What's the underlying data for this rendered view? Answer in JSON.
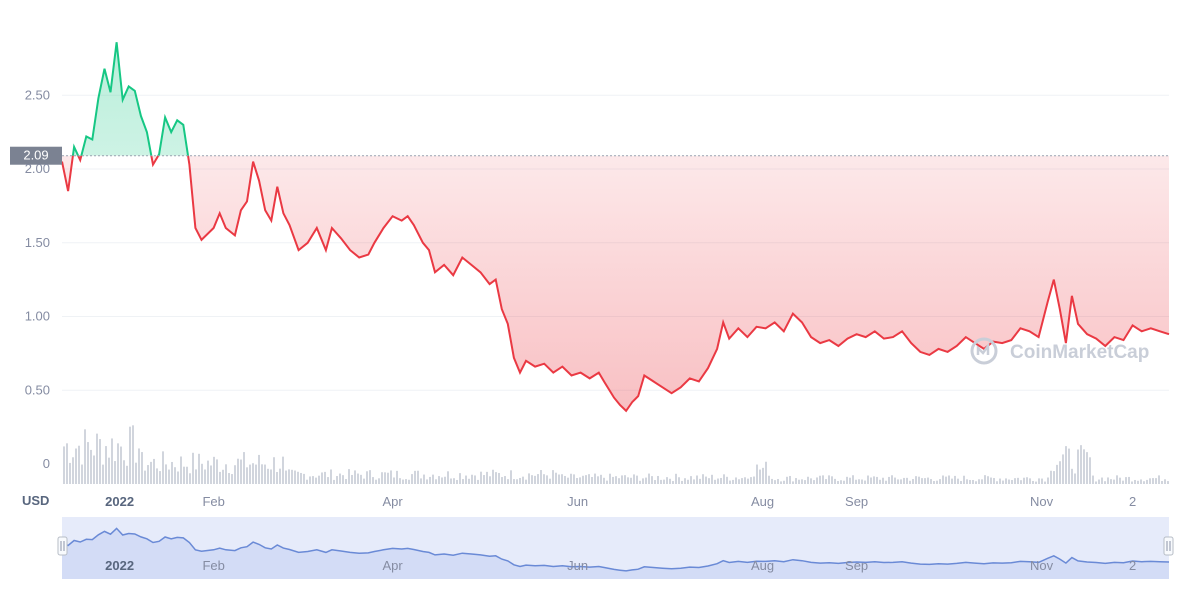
{
  "chart_data": {
    "type": "area",
    "y_axis": {
      "unit_label": "USD",
      "ticks": [
        "0",
        "0.50",
        "1.00",
        "1.50",
        "2.00",
        "2.50"
      ],
      "ylim": [
        0,
        3.0
      ]
    },
    "x_axis": {
      "labels": [
        {
          "text": "2022",
          "date": "2022-01-01",
          "bold": true
        },
        {
          "text": "Feb",
          "date": "2022-02-01",
          "bold": false
        },
        {
          "text": "Apr",
          "date": "2022-04-01",
          "bold": false
        },
        {
          "text": "Jun",
          "date": "2022-06-01",
          "bold": false
        },
        {
          "text": "Aug",
          "date": "2022-08-01",
          "bold": false
        },
        {
          "text": "Sep",
          "date": "2022-09-01",
          "bold": false
        },
        {
          "text": "Nov",
          "date": "2022-11-01",
          "bold": false
        },
        {
          "text": "2",
          "date": "2022-12-01",
          "bold": false
        }
      ],
      "range": [
        "2021-12-13",
        "2022-12-13"
      ]
    },
    "reference_price": 2.09,
    "reference_label": "2.09",
    "colors": {
      "above": "#16c784",
      "below": "#ea3943",
      "volume": "#d1d5dd",
      "navigator_line": "#6a8ad6",
      "navigator_fill": "#e6ebfa"
    },
    "series": [
      {
        "values": [
          [
            "2021-12-13",
            2.05
          ],
          [
            "2021-12-15",
            1.85
          ],
          [
            "2021-12-17",
            2.15
          ],
          [
            "2021-12-19",
            2.06
          ],
          [
            "2021-12-21",
            2.22
          ],
          [
            "2021-12-23",
            2.2
          ],
          [
            "2021-12-25",
            2.48
          ],
          [
            "2021-12-27",
            2.68
          ],
          [
            "2021-12-29",
            2.52
          ],
          [
            "2021-12-31",
            2.86
          ],
          [
            "2022-01-02",
            2.47
          ],
          [
            "2022-01-04",
            2.56
          ],
          [
            "2022-01-06",
            2.53
          ],
          [
            "2022-01-08",
            2.36
          ],
          [
            "2022-01-10",
            2.25
          ],
          [
            "2022-01-12",
            2.03
          ],
          [
            "2022-01-14",
            2.1
          ],
          [
            "2022-01-16",
            2.35
          ],
          [
            "2022-01-18",
            2.25
          ],
          [
            "2022-01-20",
            2.33
          ],
          [
            "2022-01-22",
            2.3
          ],
          [
            "2022-01-24",
            2.03
          ],
          [
            "2022-01-26",
            1.6
          ],
          [
            "2022-01-28",
            1.52
          ],
          [
            "2022-02-01",
            1.6
          ],
          [
            "2022-02-03",
            1.7
          ],
          [
            "2022-02-05",
            1.6
          ],
          [
            "2022-02-08",
            1.55
          ],
          [
            "2022-02-10",
            1.72
          ],
          [
            "2022-02-12",
            1.78
          ],
          [
            "2022-02-14",
            2.05
          ],
          [
            "2022-02-16",
            1.92
          ],
          [
            "2022-02-18",
            1.72
          ],
          [
            "2022-02-20",
            1.65
          ],
          [
            "2022-02-22",
            1.88
          ],
          [
            "2022-02-24",
            1.7
          ],
          [
            "2022-02-26",
            1.62
          ],
          [
            "2022-03-01",
            1.45
          ],
          [
            "2022-03-04",
            1.5
          ],
          [
            "2022-03-07",
            1.6
          ],
          [
            "2022-03-10",
            1.45
          ],
          [
            "2022-03-12",
            1.6
          ],
          [
            "2022-03-15",
            1.53
          ],
          [
            "2022-03-18",
            1.45
          ],
          [
            "2022-03-21",
            1.4
          ],
          [
            "2022-03-24",
            1.42
          ],
          [
            "2022-03-26",
            1.5
          ],
          [
            "2022-03-29",
            1.6
          ],
          [
            "2022-04-01",
            1.68
          ],
          [
            "2022-04-04",
            1.65
          ],
          [
            "2022-04-06",
            1.68
          ],
          [
            "2022-04-08",
            1.62
          ],
          [
            "2022-04-11",
            1.5
          ],
          [
            "2022-04-13",
            1.45
          ],
          [
            "2022-04-15",
            1.3
          ],
          [
            "2022-04-18",
            1.35
          ],
          [
            "2022-04-21",
            1.28
          ],
          [
            "2022-04-24",
            1.4
          ],
          [
            "2022-04-27",
            1.35
          ],
          [
            "2022-04-30",
            1.3
          ],
          [
            "2022-05-03",
            1.22
          ],
          [
            "2022-05-05",
            1.25
          ],
          [
            "2022-05-07",
            1.05
          ],
          [
            "2022-05-09",
            0.95
          ],
          [
            "2022-05-11",
            0.72
          ],
          [
            "2022-05-13",
            0.62
          ],
          [
            "2022-05-15",
            0.7
          ],
          [
            "2022-05-18",
            0.66
          ],
          [
            "2022-05-21",
            0.68
          ],
          [
            "2022-05-24",
            0.62
          ],
          [
            "2022-05-27",
            0.66
          ],
          [
            "2022-05-30",
            0.6
          ],
          [
            "2022-06-02",
            0.62
          ],
          [
            "2022-06-05",
            0.58
          ],
          [
            "2022-06-08",
            0.62
          ],
          [
            "2022-06-10",
            0.55
          ],
          [
            "2022-06-13",
            0.45
          ],
          [
            "2022-06-15",
            0.4
          ],
          [
            "2022-06-17",
            0.36
          ],
          [
            "2022-06-19",
            0.42
          ],
          [
            "2022-06-21",
            0.46
          ],
          [
            "2022-06-23",
            0.6
          ],
          [
            "2022-06-26",
            0.56
          ],
          [
            "2022-06-29",
            0.52
          ],
          [
            "2022-07-02",
            0.48
          ],
          [
            "2022-07-05",
            0.52
          ],
          [
            "2022-07-08",
            0.58
          ],
          [
            "2022-07-11",
            0.56
          ],
          [
            "2022-07-14",
            0.65
          ],
          [
            "2022-07-17",
            0.78
          ],
          [
            "2022-07-19",
            0.96
          ],
          [
            "2022-07-21",
            0.85
          ],
          [
            "2022-07-24",
            0.92
          ],
          [
            "2022-07-27",
            0.86
          ],
          [
            "2022-07-30",
            0.93
          ],
          [
            "2022-08-02",
            0.92
          ],
          [
            "2022-08-05",
            0.96
          ],
          [
            "2022-08-08",
            0.9
          ],
          [
            "2022-08-11",
            1.02
          ],
          [
            "2022-08-14",
            0.96
          ],
          [
            "2022-08-17",
            0.86
          ],
          [
            "2022-08-20",
            0.82
          ],
          [
            "2022-08-23",
            0.84
          ],
          [
            "2022-08-26",
            0.8
          ],
          [
            "2022-08-29",
            0.85
          ],
          [
            "2022-09-01",
            0.88
          ],
          [
            "2022-09-04",
            0.86
          ],
          [
            "2022-09-07",
            0.9
          ],
          [
            "2022-09-10",
            0.85
          ],
          [
            "2022-09-13",
            0.86
          ],
          [
            "2022-09-16",
            0.9
          ],
          [
            "2022-09-19",
            0.82
          ],
          [
            "2022-09-22",
            0.76
          ],
          [
            "2022-09-25",
            0.74
          ],
          [
            "2022-09-28",
            0.78
          ],
          [
            "2022-10-01",
            0.76
          ],
          [
            "2022-10-04",
            0.8
          ],
          [
            "2022-10-07",
            0.86
          ],
          [
            "2022-10-10",
            0.82
          ],
          [
            "2022-10-13",
            0.78
          ],
          [
            "2022-10-16",
            0.83
          ],
          [
            "2022-10-19",
            0.82
          ],
          [
            "2022-10-22",
            0.84
          ],
          [
            "2022-10-25",
            0.92
          ],
          [
            "2022-10-28",
            0.9
          ],
          [
            "2022-10-31",
            0.86
          ],
          [
            "2022-11-03",
            1.1
          ],
          [
            "2022-11-05",
            1.25
          ],
          [
            "2022-11-07",
            1.05
          ],
          [
            "2022-11-09",
            0.82
          ],
          [
            "2022-11-11",
            1.14
          ],
          [
            "2022-11-13",
            0.95
          ],
          [
            "2022-11-16",
            0.88
          ],
          [
            "2022-11-19",
            0.85
          ],
          [
            "2022-11-22",
            0.8
          ],
          [
            "2022-11-25",
            0.86
          ],
          [
            "2022-11-28",
            0.84
          ],
          [
            "2022-12-01",
            0.94
          ],
          [
            "2022-12-04",
            0.9
          ],
          [
            "2022-12-07",
            0.92
          ],
          [
            "2022-12-10",
            0.9
          ],
          [
            "2022-12-13",
            0.88
          ]
        ]
      }
    ]
  },
  "watermark": {
    "text": "CoinMarketCap"
  }
}
